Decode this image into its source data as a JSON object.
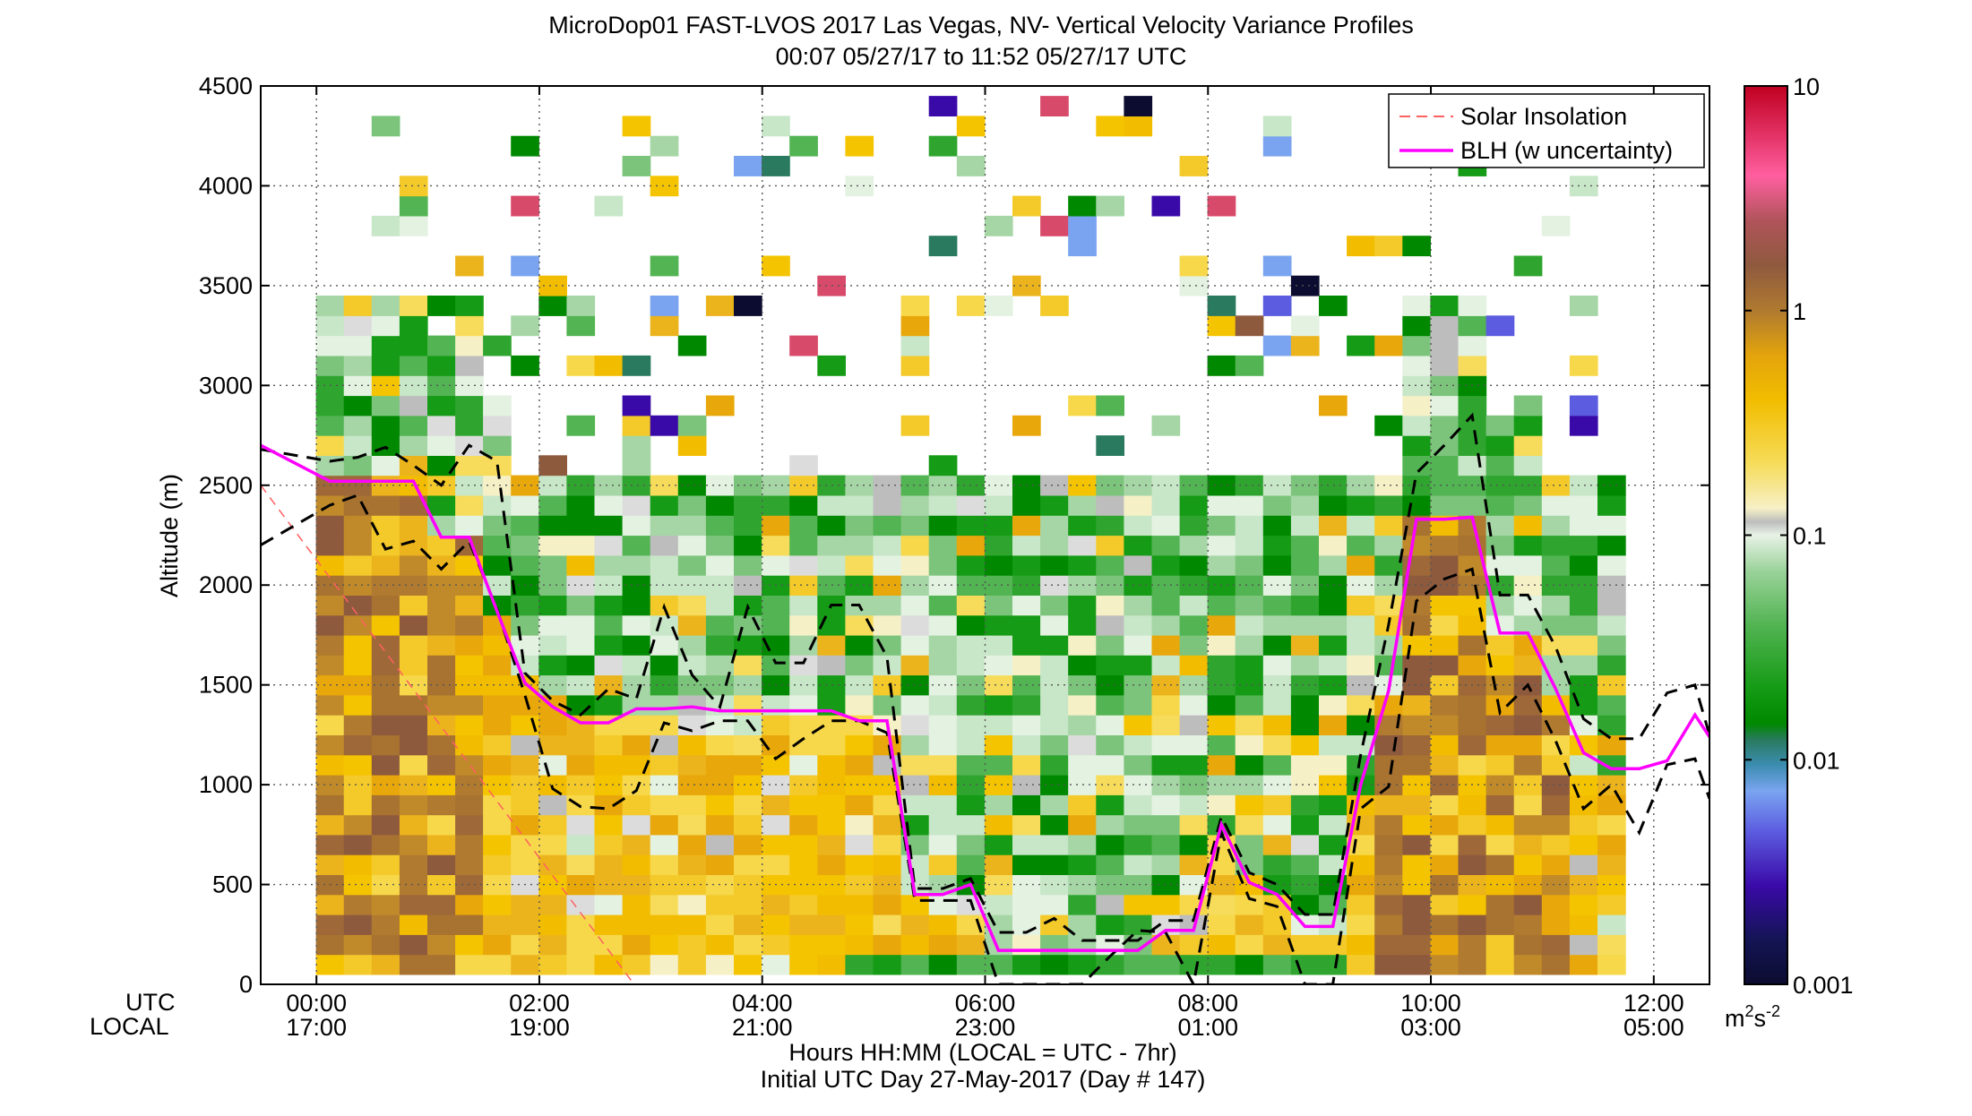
{
  "chart_data": {
    "type": "heatmap",
    "title": "MicroDop01 FAST-LVOS 2017 Las Vegas, NV- Vertical Velocity Variance Profiles",
    "subtitle": "00:07 05/27/17 to 11:52 05/27/17  UTC",
    "ylabel": "Altitude (m)",
    "xlabel": "Hours HH:MM  (LOCAL = UTC - 7hr)",
    "xlabel2": "Initial UTC Day 27-May-2017 (Day # 147)",
    "x_row_label_utc": "UTC",
    "x_row_label_local": "LOCAL",
    "ylim": [
      0,
      4500
    ],
    "xlim_hours": [
      -0.5,
      12.5
    ],
    "grid": true,
    "y_ticks": [
      "0",
      "500",
      "1000",
      "1500",
      "2000",
      "2500",
      "3000",
      "3500",
      "4000",
      "4500"
    ],
    "x_ticks_utc": [
      "00:00",
      "02:00",
      "04:00",
      "06:00",
      "08:00",
      "10:00",
      "12:00"
    ],
    "x_ticks_local": [
      "17:00",
      "19:00",
      "21:00",
      "23:00",
      "01:00",
      "03:00",
      "05:00"
    ],
    "colorbar": {
      "scale": "log",
      "range": [
        0.001,
        10
      ],
      "tick_labels": [
        "0.001",
        "0.01",
        "0.1",
        "1",
        "10"
      ],
      "units_main": "m",
      "units_sup1": "2",
      "units_mid": "s",
      "units_sup2": "-2"
    },
    "legend": {
      "placement": "top-right",
      "entries": [
        {
          "label": "Solar Insolation",
          "color": "#ff6060",
          "style": "dashed"
        },
        {
          "label": "BLH (w uncertainty)",
          "color": "#ff00ff",
          "style": "solid"
        }
      ]
    },
    "time_hours": [
      0.12,
      0.37,
      0.62,
      0.87,
      1.12,
      1.37,
      1.62,
      1.87,
      2.12,
      2.37,
      2.62,
      2.87,
      3.12,
      3.37,
      3.62,
      3.87,
      4.12,
      4.37,
      4.62,
      4.87,
      5.12,
      5.37,
      5.62,
      5.87,
      6.12,
      6.37,
      6.62,
      6.87,
      7.12,
      7.37,
      7.62,
      7.87,
      8.12,
      8.37,
      8.62,
      8.87,
      9.12,
      9.37,
      9.62,
      9.87,
      10.12,
      10.37,
      10.62,
      10.87,
      11.12,
      11.37,
      11.62
    ],
    "series": [
      {
        "name": "BLH (w uncertainty)",
        "x": [
          -0.5,
          0.12,
          0.37,
          0.62,
          0.87,
          1.12,
          1.37,
          1.62,
          1.87,
          2.12,
          2.37,
          2.62,
          2.87,
          3.12,
          3.37,
          3.62,
          3.87,
          4.12,
          4.37,
          4.62,
          4.87,
          5.12,
          5.37,
          5.62,
          5.87,
          6.12,
          6.37,
          6.62,
          6.87,
          7.12,
          7.37,
          7.62,
          7.87,
          8.12,
          8.37,
          8.62,
          8.87,
          9.12,
          9.37,
          9.62,
          9.87,
          10.12,
          10.37,
          10.62,
          10.87,
          11.12,
          11.37,
          11.62,
          11.87,
          12.12,
          12.37,
          12.5
        ],
        "y": [
          2700,
          2520,
          2520,
          2520,
          2520,
          2240,
          2240,
          1870,
          1510,
          1390,
          1310,
          1310,
          1380,
          1380,
          1390,
          1370,
          1370,
          1370,
          1370,
          1370,
          1320,
          1320,
          450,
          450,
          500,
          170,
          170,
          170,
          170,
          170,
          170,
          270,
          270,
          800,
          510,
          450,
          290,
          290,
          1000,
          1470,
          2330,
          2330,
          2340,
          1760,
          1760,
          1480,
          1160,
          1080,
          1080,
          1120,
          1350,
          1240
        ]
      },
      {
        "name": "",
        "x": [
          -0.5,
          0.12,
          0.37,
          0.62,
          0.87,
          1.12,
          1.37,
          1.62,
          1.87,
          2.12,
          2.37,
          2.62,
          2.87,
          3.12,
          3.37,
          3.62,
          3.87,
          4.12,
          4.37,
          4.62,
          4.87,
          5.12,
          5.37,
          5.62,
          5.87,
          6.12,
          6.37,
          6.62,
          6.87,
          7.12,
          7.37,
          7.62,
          7.87,
          8.12,
          8.37,
          8.62,
          8.87,
          9.12,
          9.37,
          9.62,
          9.87,
          10.12,
          10.37,
          10.62,
          10.87,
          11.12,
          11.37,
          11.62,
          11.87,
          12.12,
          12.37,
          12.5
        ],
        "y": [
          2680,
          2620,
          2640,
          2690,
          2600,
          2500,
          2700,
          2620,
          1560,
          1420,
          1350,
          1480,
          1430,
          1890,
          1550,
          1390,
          1890,
          1610,
          1610,
          1900,
          1900,
          1640,
          480,
          480,
          530,
          260,
          260,
          330,
          220,
          220,
          220,
          320,
          320,
          840,
          560,
          500,
          350,
          350,
          1150,
          1800,
          2560,
          2700,
          2850,
          1950,
          1950,
          1690,
          1330,
          1230,
          1230,
          1460,
          1500,
          1250
        ]
      },
      {
        "name": "",
        "x": [
          -0.5,
          0.12,
          0.37,
          0.62,
          0.87,
          1.12,
          1.37,
          1.62,
          1.87,
          2.12,
          2.37,
          2.62,
          2.87,
          3.12,
          3.37,
          3.62,
          3.87,
          4.12,
          4.37,
          4.62,
          4.87,
          5.12,
          5.37,
          5.62,
          5.87,
          6.12,
          6.37,
          6.62,
          6.87,
          7.12,
          7.37,
          7.62,
          7.87,
          8.12,
          8.37,
          8.62,
          8.87,
          9.12,
          9.37,
          9.62,
          9.87,
          10.12,
          10.37,
          10.62,
          10.87,
          11.12,
          11.37,
          11.62,
          11.87,
          12.12,
          12.37,
          12.5
        ],
        "y": [
          2200,
          2400,
          2450,
          2180,
          2220,
          2080,
          2220,
          1880,
          1450,
          980,
          890,
          880,
          970,
          1310,
          1270,
          1320,
          1320,
          1130,
          1230,
          1320,
          1320,
          1260,
          420,
          420,
          420,
          0,
          0,
          0,
          0,
          140,
          270,
          260,
          0,
          760,
          430,
          390,
          0,
          0,
          880,
          990,
          1920,
          2030,
          2080,
          1360,
          1500,
          1220,
          880,
          1000,
          760,
          1100,
          1130,
          930
        ]
      },
      {
        "name": "Solar Insolation",
        "x": [
          -0.5,
          2.85
        ],
        "y": [
          2500,
          0
        ]
      }
    ]
  }
}
